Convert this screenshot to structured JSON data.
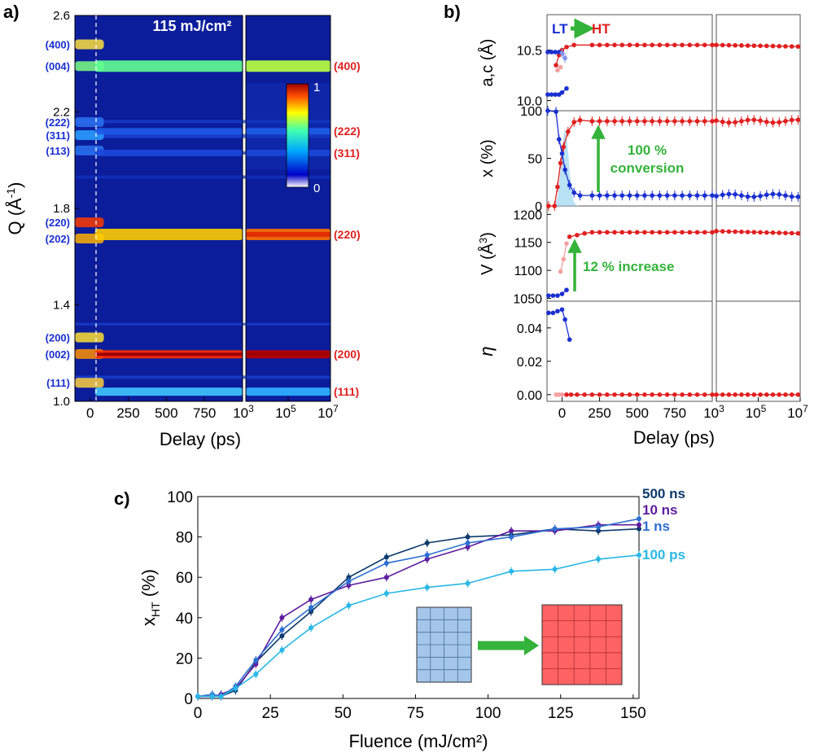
{
  "chart_data": [
    {
      "panel": "a)",
      "type": "heatmap",
      "annotation": "115 mJ/cm²",
      "xlabel": "Delay (ps)",
      "ylabel_main": "Q (",
      "ylabel_unit": "Å",
      "ylabel_exp": "-1",
      "ylabel_close": ")",
      "x_ticks_linear": [
        "0",
        "250",
        "500",
        "750"
      ],
      "x_ticks_linear_values": [
        0,
        250,
        500,
        750
      ],
      "x_ticks_log": [
        {
          "base": "10",
          "exp": "3"
        },
        {
          "base": "10",
          "exp": "5"
        },
        {
          "base": "10",
          "exp": "7"
        }
      ],
      "x_range_linear": [
        -100,
        1000
      ],
      "x_range_log_exp": [
        3,
        7
      ],
      "y_range": [
        1.0,
        2.6
      ],
      "y_ticks": [
        "1.0",
        "1.4",
        "1.8",
        "2.2",
        "2.6"
      ],
      "y_tick_values": [
        1.0,
        1.4,
        1.8,
        2.2,
        2.6
      ],
      "colorbar": {
        "min_label": "0",
        "max_label": "1"
      },
      "lt_peaks": [
        {
          "label": "(400)",
          "q": 2.48
        },
        {
          "label": "(004)",
          "q": 2.39
        },
        {
          "label": "(222)",
          "q": 2.158
        },
        {
          "label": "(311)",
          "q": 2.104
        },
        {
          "label": "(113)",
          "q": 2.04
        },
        {
          "label": "(220)",
          "q": 1.742
        },
        {
          "label": "(202)",
          "q": 1.675
        },
        {
          "label": "(200)",
          "q": 1.265
        },
        {
          "label": "(002)",
          "q": 1.196
        },
        {
          "label": "(111)",
          "q": 1.077
        }
      ],
      "ht_peaks": [
        {
          "label": "(400)",
          "q": 2.39
        },
        {
          "label": "(222)",
          "q": 2.12
        },
        {
          "label": "(311)",
          "q": 2.03
        },
        {
          "label": "(220)",
          "q": 1.692
        },
        {
          "label": "(200)",
          "q": 1.195
        },
        {
          "label": "(111)",
          "q": 1.04
        }
      ]
    },
    {
      "panel": "b)",
      "type": "line",
      "xlabel": "Delay (ps)",
      "x_ticks_linear": [
        "0",
        "250",
        "500",
        "750"
      ],
      "x_ticks_linear_values": [
        0,
        250,
        500,
        750
      ],
      "x_ticks_log": [
        {
          "base": "10",
          "exp": "3"
        },
        {
          "base": "10",
          "exp": "5"
        },
        {
          "base": "10",
          "exp": "7"
        }
      ],
      "legend": {
        "lt": "LT",
        "ht": "HT"
      },
      "subpanels": [
        {
          "name": "lattice",
          "ylabel": "a,c (",
          "ylabel_unit": "Å",
          "ylabel_close": ")",
          "ylim": [
            9.9,
            10.85
          ],
          "y_ticks": [
            "10.0",
            "10.5"
          ],
          "y_tick_values": [
            10.0,
            10.5
          ],
          "ht": [
            10.55,
            10.55
          ],
          "lt_a": [
            10.48,
            10.48
          ],
          "lt_c": [
            10.06,
            10.06
          ]
        },
        {
          "name": "fraction",
          "ylabel": "x (%)",
          "ylim": [
            0,
            100
          ],
          "y_ticks": [
            "0",
            "50",
            "100"
          ],
          "y_tick_values": [
            0,
            50,
            100
          ],
          "annotation_1": "100 %",
          "annotation_2": "conversion"
        },
        {
          "name": "volume",
          "ylabel": "V (",
          "ylabel_unit": "Å",
          "ylabel_exp": "3",
          "ylabel_close": ")",
          "ylim": [
            1045,
            1215
          ],
          "y_ticks": [
            "1050",
            "1100",
            "1150",
            "1200"
          ],
          "y_tick_values": [
            1050,
            1100,
            1150,
            1200
          ],
          "annotation": "12 % increase"
        },
        {
          "name": "eta",
          "ylabel": "η",
          "ylim": [
            -0.004,
            0.056
          ],
          "y_ticks": [
            "0.00",
            "0.02",
            "0.04"
          ],
          "y_tick_values": [
            0.0,
            0.02,
            0.04
          ]
        }
      ]
    },
    {
      "panel": "c)",
      "type": "line",
      "xlabel": "Fluence (mJ/cm²)",
      "ylabel": "x",
      "ylabel_sub": "HT",
      "ylabel_tail": " (%)",
      "xlim": [
        0,
        152
      ],
      "ylim": [
        0,
        100
      ],
      "x_ticks": [
        "0",
        "25",
        "50",
        "75",
        "100",
        "125",
        "150"
      ],
      "x_tick_values": [
        0,
        25,
        50,
        75,
        100,
        125,
        150
      ],
      "y_ticks": [
        "0",
        "20",
        "40",
        "60",
        "80",
        "100"
      ],
      "y_tick_values": [
        0,
        20,
        40,
        60,
        80,
        100
      ],
      "x": [
        0,
        5,
        8,
        13,
        20,
        29,
        39,
        52,
        65,
        79,
        93,
        108,
        123,
        138,
        152
      ],
      "series": [
        {
          "name": "500 ns",
          "color": "#0b3a6b",
          "values": [
            1,
            1,
            1,
            4,
            18,
            31,
            43,
            60,
            70,
            77,
            80,
            81,
            84,
            83,
            84
          ]
        },
        {
          "name": "10 ns",
          "color": "#5e1d9e",
          "values": [
            1,
            1,
            2,
            5,
            17,
            40,
            49,
            56,
            60,
            69,
            75,
            83,
            83,
            86,
            86
          ]
        },
        {
          "name": "1 ns",
          "color": "#2d6fd1",
          "values": [
            1,
            2,
            1,
            6,
            19,
            34,
            45,
            58,
            67,
            71,
            77,
            80,
            84,
            85,
            89
          ]
        },
        {
          "name": "100 ps",
          "color": "#29b7e6",
          "values": [
            1,
            1,
            1,
            5,
            12,
            24,
            35,
            46,
            52,
            55,
            57,
            63,
            64,
            69,
            71
          ]
        }
      ]
    }
  ]
}
